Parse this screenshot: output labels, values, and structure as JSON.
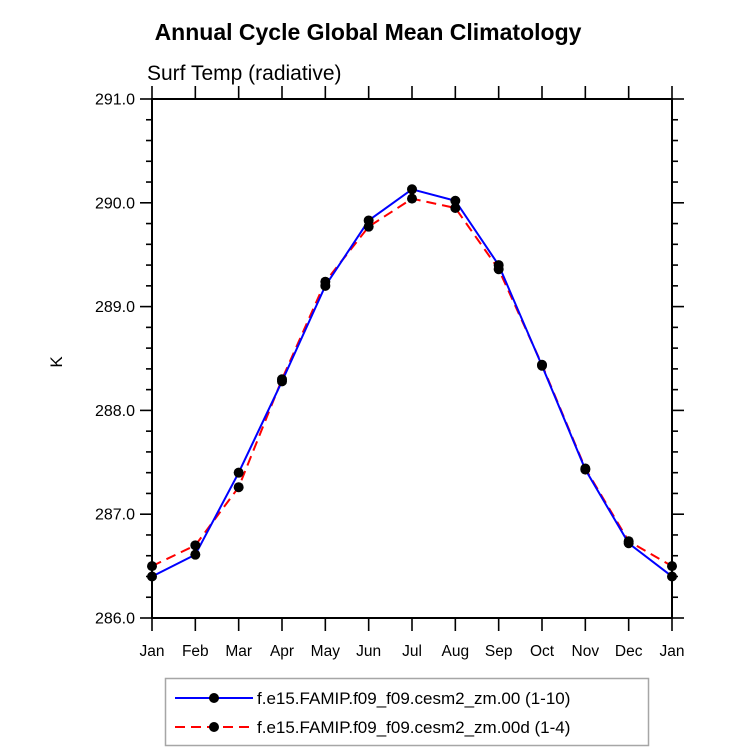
{
  "chart_data": {
    "type": "line",
    "title": "Annual Cycle Global Mean Climatology",
    "subtitle": "Surf Temp (radiative)",
    "ylabel": "K",
    "categories": [
      "Jan",
      "Feb",
      "Mar",
      "Apr",
      "May",
      "Jun",
      "Jul",
      "Aug",
      "Sep",
      "Oct",
      "Nov",
      "Dec",
      "Jan"
    ],
    "ylim": [
      286.0,
      291.0
    ],
    "ytick_interval": 1.0,
    "yminor_interval": 0.2,
    "ytick_labels": [
      "286.0",
      "287.0",
      "288.0",
      "289.0",
      "290.0",
      "291.0"
    ],
    "grid": false,
    "legend_position": "bottom-center",
    "marker": "filled-circle",
    "marker_color": "#000000",
    "frame_color": "#000000",
    "series": [
      {
        "name": "f.e15.FAMIP.f09_f09.cesm2_zm.00 (1-10)",
        "color": "#0000ff",
        "style": "solid",
        "values": [
          286.4,
          286.61,
          287.4,
          288.28,
          289.2,
          289.83,
          290.13,
          290.02,
          289.4,
          288.43,
          287.43,
          286.72,
          286.4
        ]
      },
      {
        "name": "f.e15.FAMIP.f09_f09.cesm2_zm.00d (1-4)",
        "color": "#ff0000",
        "style": "dashed",
        "values": [
          286.5,
          286.7,
          287.26,
          288.3,
          289.24,
          289.77,
          290.04,
          289.95,
          289.36,
          288.44,
          287.44,
          286.74,
          286.5
        ]
      }
    ]
  }
}
